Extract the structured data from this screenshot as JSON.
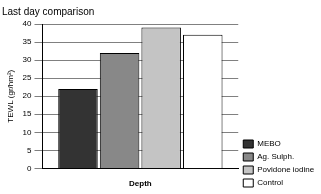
{
  "chart_data": {
    "type": "bar",
    "title": "Last day comparison",
    "y_label": "TEWL (gr/hm²)",
    "categories": [
      "Depth"
    ],
    "series": [
      {
        "name": "MEBO",
        "color": "#333333",
        "values": [
          22
        ]
      },
      {
        "name": "Ag. Sulph.",
        "color": "#888888",
        "values": [
          32
        ]
      },
      {
        "name": "Povidone iodine",
        "color": "#c4c4c4",
        "values": [
          39
        ]
      },
      {
        "name": "Control",
        "color": "#ffffff",
        "values": [
          37
        ]
      }
    ],
    "ylim": [
      0,
      40
    ],
    "yticks": [
      0,
      5,
      10,
      15,
      20,
      25,
      30,
      35,
      40
    ],
    "grid": true,
    "legend": "right"
  }
}
